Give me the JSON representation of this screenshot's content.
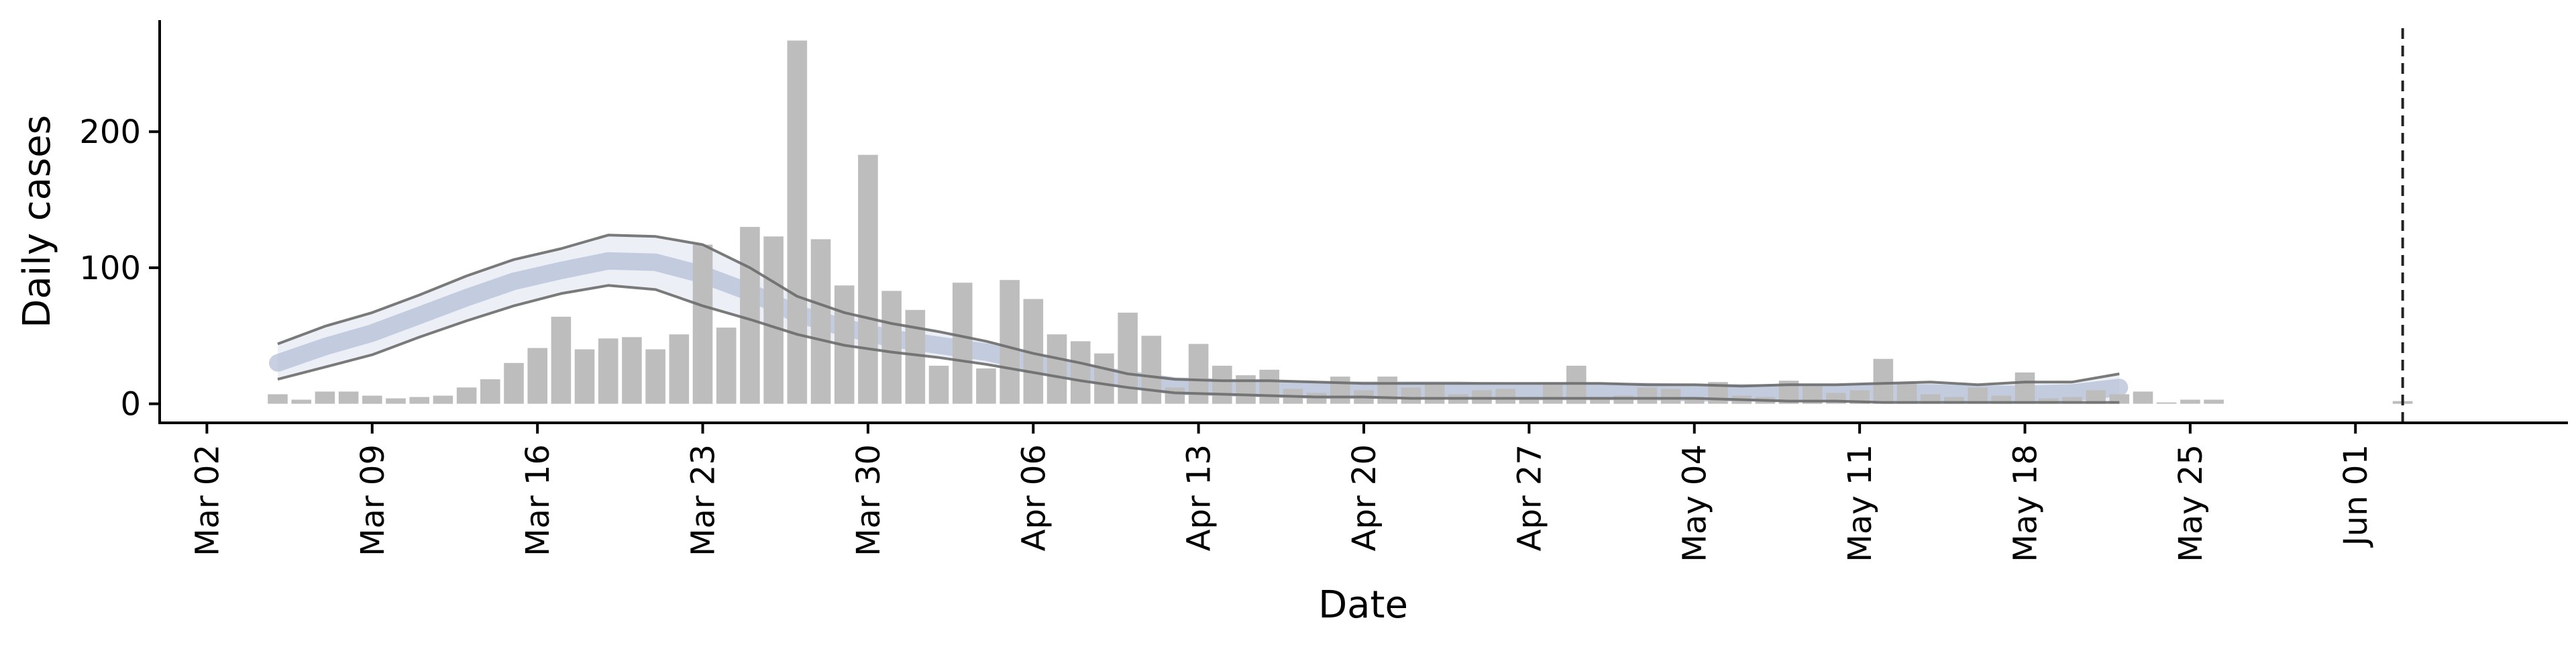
{
  "chart_data": {
    "type": "bar",
    "title": "",
    "xlabel": "Date",
    "ylabel": "Daily cases",
    "x_ticks": [
      "Mar 02",
      "Mar 09",
      "Mar 16",
      "Mar 23",
      "Mar 30",
      "Apr 06",
      "Apr 13",
      "Apr 20",
      "Apr 27",
      "May 04",
      "May 11",
      "May 18",
      "May 25",
      "Jun 01"
    ],
    "yticks": [
      0,
      100,
      200
    ],
    "ylim": [
      -14,
      282
    ],
    "xlim": [
      "2020-02-29",
      "2020-06-10"
    ],
    "grid": false,
    "legend": "none",
    "colors": {
      "bars": "#bdbdbd",
      "band_outer": "#e9ecf4",
      "band_inner": "#b9c3d8",
      "band_edges": "#6b6b6b",
      "vline": "#222222"
    },
    "bars": {
      "start_date": "2020-03-05",
      "values": [
        7,
        3,
        9,
        9,
        6,
        4,
        5,
        6,
        12,
        18,
        30,
        41,
        64,
        40,
        48,
        49,
        40,
        51,
        117,
        56,
        130,
        123,
        267,
        121,
        87,
        183,
        83,
        69,
        28,
        89,
        26,
        91,
        77,
        51,
        46,
        37,
        67,
        50,
        12,
        44,
        28,
        21,
        25,
        11,
        8,
        20,
        10,
        20,
        12,
        14,
        7,
        10,
        11,
        5,
        14,
        28,
        5,
        6,
        12,
        11,
        5,
        16,
        6,
        5,
        17,
        13,
        8,
        10,
        33,
        15,
        7,
        5,
        12,
        6,
        23,
        4,
        5,
        10,
        7,
        9,
        1,
        3,
        3
      ],
      "extra": [
        {
          "date": "2020-06-03",
          "value": 2
        }
      ]
    },
    "band": {
      "start_date": "2020-03-05",
      "step_days": 2,
      "upper": [
        44,
        57,
        67,
        80,
        94,
        106,
        114,
        124,
        123,
        117,
        100,
        79,
        67,
        59,
        53,
        46,
        37,
        30,
        22,
        18,
        17,
        17,
        16,
        15,
        15,
        15,
        15,
        15,
        15,
        14,
        14,
        13,
        14,
        14,
        15,
        16,
        14,
        16,
        16,
        22
      ],
      "lower": [
        18,
        27,
        36,
        49,
        61,
        72,
        81,
        87,
        84,
        72,
        62,
        51,
        43,
        38,
        34,
        29,
        23,
        17,
        12,
        8,
        7,
        6,
        5,
        5,
        4,
        4,
        4,
        4,
        4,
        4,
        4,
        3,
        2,
        2,
        1,
        1,
        1,
        1,
        1,
        1
      ],
      "median": [
        30,
        42,
        52,
        65,
        78,
        90,
        98,
        105,
        104,
        95,
        82,
        66,
        56,
        48,
        43,
        38,
        30,
        23,
        18,
        13,
        12,
        11,
        10,
        10,
        10,
        10,
        9,
        9,
        9,
        9,
        8,
        8,
        8,
        8,
        8,
        8,
        7,
        7,
        8,
        12
      ]
    },
    "vline_date": "2020-06-03"
  }
}
